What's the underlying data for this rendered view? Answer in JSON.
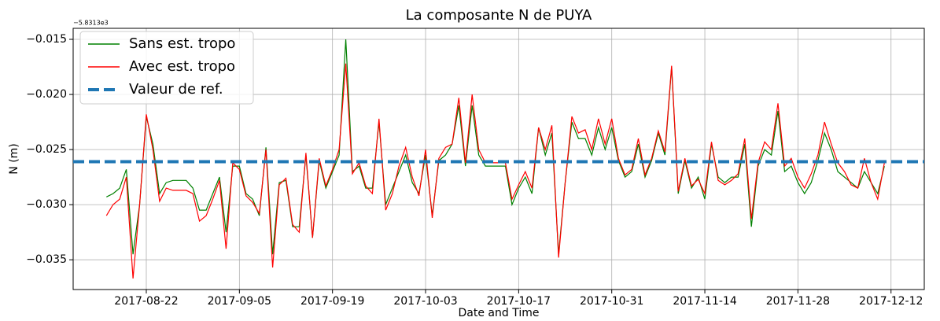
{
  "chart_data": {
    "type": "line",
    "title": "La composante N de PUYA",
    "xlabel": "Date and Time",
    "ylabel": "N (m)",
    "offset_label": "−5.8313e3",
    "x": [
      "2017-08-16",
      "2017-08-17",
      "2017-08-18",
      "2017-08-19",
      "2017-08-20",
      "2017-08-21",
      "2017-08-22",
      "2017-08-23",
      "2017-08-24",
      "2017-08-25",
      "2017-08-26",
      "2017-08-27",
      "2017-08-28",
      "2017-08-29",
      "2017-08-30",
      "2017-08-31",
      "2017-09-01",
      "2017-09-02",
      "2017-09-03",
      "2017-09-04",
      "2017-09-05",
      "2017-09-06",
      "2017-09-07",
      "2017-09-08",
      "2017-09-09",
      "2017-09-10",
      "2017-09-11",
      "2017-09-12",
      "2017-09-13",
      "2017-09-14",
      "2017-09-15",
      "2017-09-16",
      "2017-09-17",
      "2017-09-18",
      "2017-09-19",
      "2017-09-20",
      "2017-09-21",
      "2017-09-22",
      "2017-09-23",
      "2017-09-24",
      "2017-09-25",
      "2017-09-26",
      "2017-09-27",
      "2017-09-28",
      "2017-09-29",
      "2017-09-30",
      "2017-10-01",
      "2017-10-02",
      "2017-10-03",
      "2017-10-04",
      "2017-10-05",
      "2017-10-06",
      "2017-10-07",
      "2017-10-08",
      "2017-10-09",
      "2017-10-10",
      "2017-10-11",
      "2017-10-12",
      "2017-10-13",
      "2017-10-14",
      "2017-10-15",
      "2017-10-16",
      "2017-10-17",
      "2017-10-18",
      "2017-10-19",
      "2017-10-20",
      "2017-10-21",
      "2017-10-22",
      "2017-10-23",
      "2017-10-24",
      "2017-10-25",
      "2017-10-26",
      "2017-10-27",
      "2017-10-28",
      "2017-10-29",
      "2017-10-30",
      "2017-10-31",
      "2017-11-01",
      "2017-11-02",
      "2017-11-03",
      "2017-11-04",
      "2017-11-05",
      "2017-11-06",
      "2017-11-07",
      "2017-11-08",
      "2017-11-09",
      "2017-11-10",
      "2017-11-11",
      "2017-11-12",
      "2017-11-13",
      "2017-11-14",
      "2017-11-15",
      "2017-11-16",
      "2017-11-17",
      "2017-11-18",
      "2017-11-19",
      "2017-11-20",
      "2017-11-21",
      "2017-11-22",
      "2017-11-23",
      "2017-11-24",
      "2017-11-25",
      "2017-11-26",
      "2017-11-27",
      "2017-11-28",
      "2017-11-29",
      "2017-11-30",
      "2017-12-01",
      "2017-12-02",
      "2017-12-03",
      "2017-12-04",
      "2017-12-05",
      "2017-12-06",
      "2017-12-07",
      "2017-12-08",
      "2017-12-09",
      "2017-12-10",
      "2017-12-11"
    ],
    "series": [
      {
        "name": "Sans est. tropo",
        "color": "#008000",
        "values": [
          -0.0293,
          -0.029,
          -0.0285,
          -0.0268,
          -0.0345,
          -0.03,
          -0.022,
          -0.0245,
          -0.029,
          -0.028,
          -0.0278,
          -0.0278,
          -0.0278,
          -0.0285,
          -0.0305,
          -0.0305,
          -0.029,
          -0.0275,
          -0.0325,
          -0.0265,
          -0.0265,
          -0.029,
          -0.0295,
          -0.031,
          -0.0248,
          -0.0345,
          -0.028,
          -0.0278,
          -0.032,
          -0.032,
          -0.0255,
          -0.033,
          -0.026,
          -0.0285,
          -0.027,
          -0.0255,
          -0.015,
          -0.027,
          -0.0265,
          -0.0285,
          -0.0285,
          -0.0225,
          -0.03,
          -0.0285,
          -0.027,
          -0.0255,
          -0.028,
          -0.029,
          -0.0255,
          -0.031,
          -0.026,
          -0.0255,
          -0.0245,
          -0.021,
          -0.0265,
          -0.021,
          -0.0255,
          -0.0265,
          -0.0265,
          -0.0265,
          -0.0265,
          -0.03,
          -0.0285,
          -0.0275,
          -0.029,
          -0.023,
          -0.0255,
          -0.0235,
          -0.0345,
          -0.028,
          -0.0225,
          -0.024,
          -0.024,
          -0.0255,
          -0.023,
          -0.025,
          -0.023,
          -0.026,
          -0.0275,
          -0.027,
          -0.0245,
          -0.0275,
          -0.026,
          -0.0235,
          -0.0255,
          -0.0175,
          -0.029,
          -0.026,
          -0.0285,
          -0.0275,
          -0.0295,
          -0.0245,
          -0.0275,
          -0.028,
          -0.0275,
          -0.0275,
          -0.0245,
          -0.032,
          -0.0265,
          -0.025,
          -0.0255,
          -0.0215,
          -0.027,
          -0.0265,
          -0.028,
          -0.029,
          -0.028,
          -0.026,
          -0.0235,
          -0.025,
          -0.027,
          -0.0275,
          -0.028,
          -0.0285,
          -0.027,
          -0.028,
          -0.029,
          -0.0265
        ]
      },
      {
        "name": "Avec est. tropo",
        "color": "#ff0000",
        "values": [
          -0.031,
          -0.03,
          -0.0295,
          -0.0275,
          -0.0367,
          -0.03,
          -0.0218,
          -0.025,
          -0.0297,
          -0.0285,
          -0.0287,
          -0.0287,
          -0.0287,
          -0.029,
          -0.0315,
          -0.031,
          -0.0295,
          -0.0278,
          -0.034,
          -0.0262,
          -0.0268,
          -0.0292,
          -0.0298,
          -0.0308,
          -0.025,
          -0.0357,
          -0.0282,
          -0.0276,
          -0.0318,
          -0.0325,
          -0.0253,
          -0.033,
          -0.0258,
          -0.0283,
          -0.0268,
          -0.025,
          -0.0172,
          -0.0272,
          -0.0262,
          -0.0283,
          -0.029,
          -0.0222,
          -0.0305,
          -0.029,
          -0.0265,
          -0.0248,
          -0.0275,
          -0.0292,
          -0.025,
          -0.0312,
          -0.0258,
          -0.0248,
          -0.0245,
          -0.0203,
          -0.0262,
          -0.02,
          -0.025,
          -0.0262,
          -0.0262,
          -0.0262,
          -0.0262,
          -0.0295,
          -0.0282,
          -0.027,
          -0.0285,
          -0.023,
          -0.025,
          -0.0228,
          -0.0348,
          -0.028,
          -0.022,
          -0.0235,
          -0.0232,
          -0.025,
          -0.0222,
          -0.0245,
          -0.0222,
          -0.0258,
          -0.0273,
          -0.0268,
          -0.024,
          -0.0273,
          -0.0258,
          -0.0233,
          -0.0252,
          -0.0174,
          -0.0288,
          -0.0258,
          -0.0283,
          -0.0277,
          -0.029,
          -0.0243,
          -0.0278,
          -0.0282,
          -0.0278,
          -0.0272,
          -0.024,
          -0.0313,
          -0.0262,
          -0.0243,
          -0.025,
          -0.0208,
          -0.0265,
          -0.0258,
          -0.0275,
          -0.0285,
          -0.0272,
          -0.0255,
          -0.0225,
          -0.0245,
          -0.0262,
          -0.027,
          -0.0282,
          -0.0285,
          -0.0258,
          -0.028,
          -0.0295,
          -0.0262
        ]
      }
    ],
    "reference": {
      "name": "Valeur de ref.",
      "color": "#1f77b4",
      "value": -0.0261
    },
    "xlim": [
      "2017-08-11",
      "2017-12-17"
    ],
    "xticks": [
      "2017-08-22",
      "2017-09-05",
      "2017-09-19",
      "2017-10-03",
      "2017-10-17",
      "2017-10-31",
      "2017-11-14",
      "2017-11-28",
      "2017-12-12"
    ],
    "ylim": [
      -0.0377,
      -0.014
    ],
    "yticks": [
      {
        "value": -0.035,
        "label": "−0.035"
      },
      {
        "value": -0.03,
        "label": "−0.030"
      },
      {
        "value": -0.025,
        "label": "−0.025"
      },
      {
        "value": -0.02,
        "label": "−0.020"
      },
      {
        "value": -0.015,
        "label": "−0.015"
      }
    ],
    "grid": true,
    "legend": "upper left"
  }
}
